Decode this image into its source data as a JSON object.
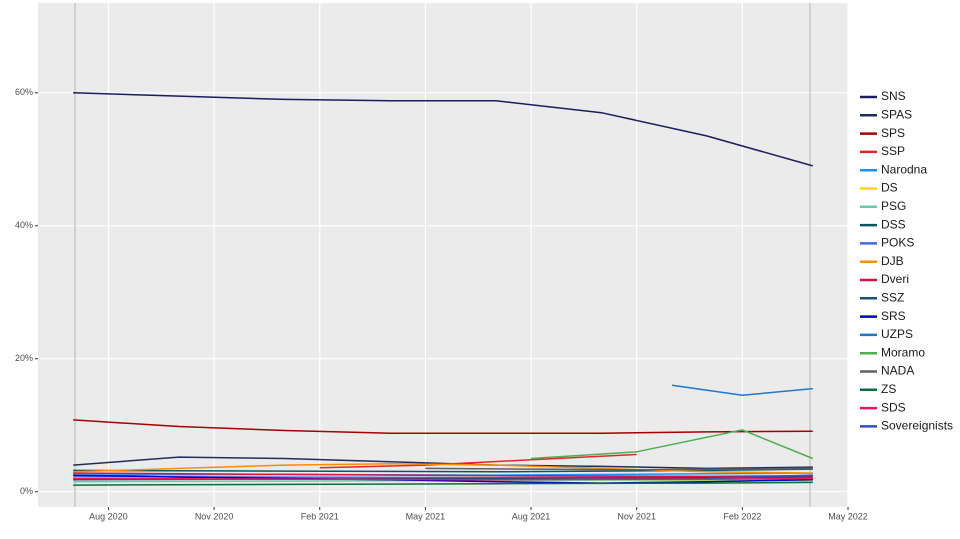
{
  "chart_data": {
    "type": "line",
    "xlim": [
      "2020-06",
      "2022-05"
    ],
    "xticks": [
      {
        "value": "2020-08",
        "label": "Aug 2020"
      },
      {
        "value": "2020-11",
        "label": "Nov 2020"
      },
      {
        "value": "2021-02",
        "label": "Feb 2021"
      },
      {
        "value": "2021-05",
        "label": "May 2021"
      },
      {
        "value": "2021-08",
        "label": "Aug 2021"
      },
      {
        "value": "2021-11",
        "label": "Nov 2021"
      },
      {
        "value": "2022-02",
        "label": "Feb 2022"
      },
      {
        "value": "2022-05",
        "label": "May 2022"
      }
    ],
    "ylim": [
      -2.3,
      73.5
    ],
    "yticks": [
      {
        "value": 0,
        "label": "0%"
      },
      {
        "value": 20,
        "label": "20%"
      },
      {
        "value": 40,
        "label": "40%"
      },
      {
        "value": 60,
        "label": "60%"
      }
    ],
    "grid": true,
    "legend": "right",
    "series": [
      {
        "name": "SNS",
        "color": "#1c1c5e",
        "x": [
          "2020-07",
          "2020-10",
          "2021-01",
          "2021-04",
          "2021-07",
          "2021-10",
          "2022-01",
          "2022-04"
        ],
        "values": [
          60,
          59.5,
          59,
          58.8,
          58.8,
          57,
          53.5,
          49
        ]
      },
      {
        "name": "SPAS",
        "color": "#1f2d5c",
        "x": [
          "2020-07",
          "2020-10",
          "2021-01",
          "2021-04",
          "2021-07",
          "2021-10",
          "2022-01",
          "2022-04"
        ],
        "values": [
          4,
          5.2,
          5,
          4.5,
          4,
          3.8,
          3.5,
          3.7
        ]
      },
      {
        "name": "SPS",
        "color": "#a50000",
        "x": [
          "2020-07",
          "2020-10",
          "2021-01",
          "2021-04",
          "2021-07",
          "2021-10",
          "2022-01",
          "2022-04"
        ],
        "values": [
          10.8,
          9.8,
          9.2,
          8.8,
          8.8,
          8.8,
          9,
          9.1
        ]
      },
      {
        "name": "SSP",
        "color": "#e02828",
        "x": [
          "2021-02",
          "2021-05",
          "2021-08",
          "2021-11"
        ],
        "values": [
          3.6,
          4,
          4.8,
          5.6
        ]
      },
      {
        "name": "Narodna",
        "color": "#1e90ff",
        "x": [
          "2020-07",
          "2021-01",
          "2021-07",
          "2022-01",
          "2022-04"
        ],
        "values": [
          2.5,
          2.6,
          2.5,
          2.7,
          2.8
        ]
      },
      {
        "name": "DS",
        "color": "#ffd700",
        "x": [
          "2020-07",
          "2021-01",
          "2021-07",
          "2022-01",
          "2022-04"
        ],
        "values": [
          2,
          1.9,
          1.8,
          1.7,
          1.6
        ]
      },
      {
        "name": "PSG",
        "color": "#66cdaa",
        "x": [
          "2020-07",
          "2021-01",
          "2021-07",
          "2022-01",
          "2022-04"
        ],
        "values": [
          1.5,
          1.6,
          1.7,
          1.8,
          1.9
        ]
      },
      {
        "name": "DSS",
        "color": "#0b5563",
        "x": [
          "2020-07",
          "2021-01",
          "2021-07",
          "2022-01",
          "2022-04"
        ],
        "values": [
          3.2,
          3.1,
          3,
          3.2,
          3.4
        ]
      },
      {
        "name": "POKS",
        "color": "#4169e1",
        "x": [
          "2020-07",
          "2021-01",
          "2021-07",
          "2022-01",
          "2022-04"
        ],
        "values": [
          2.3,
          2.2,
          2.1,
          2.2,
          2.3
        ]
      },
      {
        "name": "DJB",
        "color": "#ff8c00",
        "x": [
          "2020-07",
          "2020-10",
          "2021-01",
          "2021-04",
          "2021-07",
          "2021-10",
          "2022-01",
          "2022-04"
        ],
        "values": [
          3,
          3.5,
          4,
          4.2,
          4,
          3.5,
          3,
          2.8
        ]
      },
      {
        "name": "Dveri",
        "color": "#dc143c",
        "x": [
          "2020-07",
          "2021-01",
          "2021-07",
          "2022-01",
          "2022-04"
        ],
        "values": [
          2.8,
          2.6,
          2.4,
          2.3,
          2.4
        ]
      },
      {
        "name": "SSZ",
        "color": "#1f4e79",
        "x": [
          "2020-07",
          "2021-01",
          "2021-07",
          "2022-01",
          "2022-04"
        ],
        "values": [
          1.8,
          1.9,
          2,
          2.1,
          2.2
        ]
      },
      {
        "name": "SRS",
        "color": "#0000cd",
        "x": [
          "2020-07",
          "2020-10",
          "2021-01",
          "2021-04",
          "2021-07",
          "2021-10",
          "2022-01",
          "2022-04"
        ],
        "values": [
          2.5,
          2.2,
          2,
          1.8,
          1.5,
          1.3,
          1.5,
          1.8
        ]
      },
      {
        "name": "UZPS",
        "color": "#1e77c8",
        "x": [
          "2021-12",
          "2022-02",
          "2022-04"
        ],
        "values": [
          16,
          14.5,
          15.5
        ]
      },
      {
        "name": "Moramo",
        "color": "#4caf50",
        "x": [
          "2021-08",
          "2021-11",
          "2022-02",
          "2022-04"
        ],
        "values": [
          5,
          6,
          9.3,
          5
        ]
      },
      {
        "name": "NADA",
        "color": "#606060",
        "x": [
          "2021-05",
          "2021-08",
          "2021-11",
          "2022-02",
          "2022-04"
        ],
        "values": [
          3.5,
          3.4,
          3.3,
          3.4,
          3.5
        ]
      },
      {
        "name": "ZS",
        "color": "#0a6e3c",
        "x": [
          "2020-07",
          "2021-01",
          "2021-07",
          "2022-01",
          "2022-04"
        ],
        "values": [
          1,
          1.1,
          1.2,
          1.3,
          1.4
        ]
      },
      {
        "name": "SDS",
        "color": "#f0145a",
        "x": [
          "2020-07",
          "2021-01",
          "2021-07",
          "2022-01",
          "2022-04"
        ],
        "values": [
          2,
          1.9,
          1.8,
          1.9,
          2
        ]
      },
      {
        "name": "Sovereignists",
        "color": "#3050c0",
        "x": [
          "2022-01",
          "2022-04"
        ],
        "values": [
          2,
          2.5
        ]
      }
    ]
  }
}
